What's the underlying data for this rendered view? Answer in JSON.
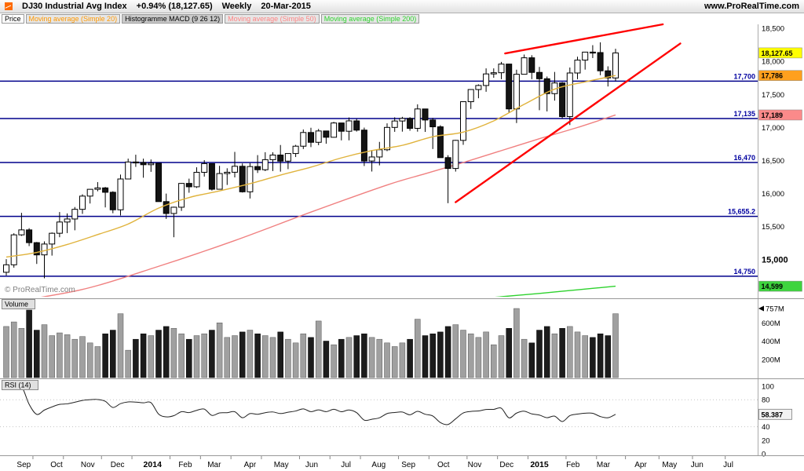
{
  "header": {
    "symbol": "DJ30 Industrial Avg Index",
    "change": "+0.94% (18,127.65)",
    "timeframe": "Weekly",
    "date": "20-Mar-2015",
    "website": "www.ProRealTime.com",
    "logo_color": "#ff6a00"
  },
  "indicators": [
    {
      "label": "Price",
      "color": "#000000",
      "bg": "#ffffff"
    },
    {
      "label": "Moving average (Simple 20)",
      "color": "#ff9800",
      "bg": "#e6e6e6"
    },
    {
      "label": "Histogramme MACD (9 26 12)",
      "color": "#000000",
      "bg": "#c9c9c9"
    },
    {
      "label": "Moving average (Simple 50)",
      "color": "#ff8585",
      "bg": "#e6e6e6"
    },
    {
      "label": "Moving average (Simple 200)",
      "color": "#2dd22d",
      "bg": "#e6e6e6"
    }
  ],
  "copyright": "© ProRealTime.com",
  "chart_data": {
    "type": "candlestick",
    "title": "DJ30 Industrial Avg Index — Weekly — 20-Mar-2015",
    "last_close": 18127.65,
    "change_pct": "+0.94%",
    "price_range": [
      14440,
      18560
    ],
    "price_ticks": [
      {
        "v": 18500,
        "label": "18,500"
      },
      {
        "v": 18000,
        "label": "18,000"
      },
      {
        "v": 17500,
        "label": "17,500"
      },
      {
        "v": 17000,
        "label": "17,000"
      },
      {
        "v": 16500,
        "label": "16,500"
      },
      {
        "v": 16000,
        "label": "16,000"
      },
      {
        "v": 15500,
        "label": "15,500"
      },
      {
        "v": 15000,
        "label": "15,000",
        "bold": true
      }
    ],
    "horizontal_lines": [
      {
        "price": 17700,
        "label": "17,700"
      },
      {
        "price": 17135,
        "label": "17,135"
      },
      {
        "price": 16470,
        "label": "16,470"
      },
      {
        "price": 15655.2,
        "label": "15,655.2"
      },
      {
        "price": 14750,
        "label": "14,750"
      }
    ],
    "badges": [
      {
        "name": "last-price-badge",
        "value": "18,127.65",
        "price": 18127.65,
        "bg": "#ffff00",
        "fg": "#000000"
      },
      {
        "name": "ma20-badge",
        "value": "17,786",
        "price": 17786,
        "bg": "#ffa01e",
        "fg": "#000000"
      },
      {
        "name": "ma50-badge",
        "value": "17,189",
        "price": 17189,
        "bg": "#fb8a8a",
        "fg": "#000000"
      },
      {
        "name": "ma200-badge",
        "value": "14,599",
        "price": 14599,
        "bg": "#3ed43e",
        "fg": "#000000"
      }
    ],
    "ma_colors": {
      "ma20": "#e0b33c",
      "ma50": "#f08080",
      "ma200": "#2dd22d"
    },
    "ma20_points": [
      [
        0,
        15040
      ],
      [
        4,
        15110
      ],
      [
        8,
        15230
      ],
      [
        12,
        15380
      ],
      [
        16,
        15540
      ],
      [
        20,
        15780
      ],
      [
        24,
        15940
      ],
      [
        28,
        16040
      ],
      [
        32,
        16150
      ],
      [
        36,
        16280
      ],
      [
        40,
        16400
      ],
      [
        44,
        16540
      ],
      [
        48,
        16650
      ],
      [
        52,
        16730
      ],
      [
        56,
        16860
      ],
      [
        60,
        16930
      ],
      [
        64,
        17100
      ],
      [
        68,
        17350
      ],
      [
        72,
        17580
      ],
      [
        76,
        17690
      ],
      [
        80,
        17786
      ]
    ],
    "ma50_points": [
      [
        0,
        14350
      ],
      [
        10,
        14550
      ],
      [
        20,
        14900
      ],
      [
        30,
        15290
      ],
      [
        40,
        15720
      ],
      [
        50,
        16130
      ],
      [
        55,
        16300
      ],
      [
        60,
        16470
      ],
      [
        65,
        16650
      ],
      [
        70,
        16830
      ],
      [
        75,
        17000
      ],
      [
        80,
        17189
      ]
    ],
    "ma200_points": [
      [
        55,
        14340
      ],
      [
        60,
        14390
      ],
      [
        65,
        14440
      ],
      [
        70,
        14490
      ],
      [
        75,
        14545
      ],
      [
        80,
        14599
      ]
    ],
    "trend_lines": [
      {
        "from": [
          59,
          15870
        ],
        "to": [
          88.5,
          18270
        ],
        "color": "#ff0000"
      },
      {
        "from": [
          65.5,
          18120
        ],
        "to": [
          86.2,
          18560
        ],
        "color": "#ff0000"
      }
    ],
    "weeks": [
      [
        14810,
        15009,
        14760,
        14923,
        560
      ],
      [
        14923,
        15400,
        14880,
        15376,
        610
      ],
      [
        15376,
        15709,
        15360,
        15451,
        540
      ],
      [
        15451,
        15477,
        15206,
        15258,
        740
      ],
      [
        15258,
        15268,
        14936,
        15073,
        520
      ],
      [
        15073,
        15277,
        14719,
        15237,
        580
      ],
      [
        15237,
        15412,
        15062,
        15400,
        460
      ],
      [
        15400,
        15721,
        15340,
        15570,
        490
      ],
      [
        15570,
        15700,
        15403,
        15616,
        470
      ],
      [
        15616,
        15797,
        15445,
        15762,
        420
      ],
      [
        15762,
        15989,
        15693,
        15962,
        450
      ],
      [
        15962,
        16068,
        15850,
        16065,
        380
      ],
      [
        16065,
        16174,
        16035,
        16086,
        340
      ],
      [
        16086,
        16100,
        15791,
        16020,
        480
      ],
      [
        16020,
        16035,
        15703,
        15755,
        520
      ],
      [
        15755,
        16288,
        15669,
        16221,
        700
      ],
      [
        16221,
        16529,
        16221,
        16478,
        300
      ],
      [
        16478,
        16588,
        16404,
        16470,
        420
      ],
      [
        16470,
        16529,
        16240,
        16437,
        480
      ],
      [
        16437,
        16516,
        16329,
        16459,
        460
      ],
      [
        16459,
        16465,
        15879,
        15879,
        520
      ],
      [
        15879,
        16000,
        15617,
        15699,
        560
      ],
      [
        15699,
        15802,
        15340,
        15794,
        540
      ],
      [
        15794,
        16159,
        15738,
        16154,
        480
      ],
      [
        16154,
        16226,
        16013,
        16103,
        420
      ],
      [
        16103,
        16398,
        16086,
        16322,
        460
      ],
      [
        16322,
        16506,
        16257,
        16453,
        480
      ],
      [
        16453,
        16457,
        16046,
        16066,
        520
      ],
      [
        16066,
        16420,
        16066,
        16303,
        600
      ],
      [
        16303,
        16383,
        16131,
        16323,
        440
      ],
      [
        16323,
        16631,
        16245,
        16413,
        460
      ],
      [
        16413,
        16456,
        16016,
        16027,
        500
      ],
      [
        16027,
        16461,
        15926,
        16409,
        520
      ],
      [
        16409,
        16582,
        16312,
        16361,
        480
      ],
      [
        16361,
        16626,
        16340,
        16513,
        460
      ],
      [
        16513,
        16625,
        16341,
        16583,
        440
      ],
      [
        16583,
        16735,
        16332,
        16491,
        500
      ],
      [
        16491,
        16607,
        16370,
        16606,
        420
      ],
      [
        16606,
        16737,
        16553,
        16717,
        380
      ],
      [
        16717,
        16970,
        16674,
        16924,
        480
      ],
      [
        16924,
        16996,
        16703,
        16776,
        440
      ],
      [
        16776,
        16978,
        16732,
        16947,
        620
      ],
      [
        16947,
        16951,
        16754,
        16852,
        400
      ],
      [
        16852,
        17085,
        16846,
        17068,
        360
      ],
      [
        17068,
        17069,
        16805,
        16943,
        420
      ],
      [
        16943,
        17151,
        16806,
        17100,
        440
      ],
      [
        17100,
        17131,
        16938,
        16960,
        460
      ],
      [
        16960,
        16998,
        16417,
        16493,
        480
      ],
      [
        16493,
        16660,
        16334,
        16554,
        440
      ],
      [
        16554,
        16782,
        16427,
        16663,
        420
      ],
      [
        16663,
        17062,
        16643,
        17001,
        380
      ],
      [
        17001,
        17154,
        16934,
        17098,
        340
      ],
      [
        17098,
        17161,
        16937,
        17137,
        380
      ],
      [
        17137,
        17156,
        16951,
        16987,
        420
      ],
      [
        16987,
        17350,
        16937,
        17280,
        640
      ],
      [
        17280,
        17282,
        16934,
        17113,
        460
      ],
      [
        17113,
        17145,
        16674,
        17010,
        480
      ],
      [
        17010,
        17034,
        16544,
        16544,
        500
      ],
      [
        16544,
        16581,
        15855,
        16380,
        560
      ],
      [
        16380,
        16812,
        16333,
        16805,
        580
      ],
      [
        16805,
        17395,
        16738,
        17390,
        520
      ],
      [
        17390,
        17580,
        17280,
        17574,
        480
      ],
      [
        17574,
        17652,
        17442,
        17635,
        440
      ],
      [
        17635,
        17894,
        17540,
        17810,
        500
      ],
      [
        17810,
        17894,
        17752,
        17828,
        360
      ],
      [
        17828,
        17991,
        17731,
        17959,
        460
      ],
      [
        17959,
        17965,
        17219,
        17281,
        540
      ],
      [
        17281,
        17874,
        17067,
        17805,
        757
      ],
      [
        17805,
        18103,
        17805,
        18054,
        420
      ],
      [
        18054,
        18093,
        17731,
        17833,
        380
      ],
      [
        17833,
        17916,
        17262,
        17737,
        520
      ],
      [
        17737,
        17771,
        17243,
        17512,
        560
      ],
      [
        17512,
        17840,
        17406,
        17673,
        480
      ],
      [
        17673,
        17686,
        17136,
        17165,
        540
      ],
      [
        17165,
        17907,
        17037,
        17824,
        560
      ],
      [
        17824,
        18070,
        17730,
        18019,
        500
      ],
      [
        18019,
        18144,
        17875,
        18140,
        460
      ],
      [
        18140,
        18245,
        18050,
        18133,
        440
      ],
      [
        18133,
        18288,
        17790,
        17857,
        480
      ],
      [
        17857,
        17925,
        17620,
        17749,
        460
      ],
      [
        17749,
        18190,
        17700,
        18127.65,
        700
      ]
    ],
    "volume": {
      "label": "Volume",
      "ticks": [
        {
          "v": 757,
          "label": "757M",
          "marker": true
        },
        {
          "v": 600,
          "label": "600M"
        },
        {
          "v": 400,
          "label": "400M"
        },
        {
          "v": 200,
          "label": "200M"
        }
      ]
    },
    "rsi": {
      "label": "RSI (14)",
      "period": 14,
      "current": 58.387,
      "current_label": "58.387",
      "ticks": [
        {
          "v": 100,
          "label": "100"
        },
        {
          "v": 80,
          "label": "80"
        },
        {
          "v": 40,
          "label": "40"
        },
        {
          "v": 20,
          "label": "20"
        },
        {
          "v": 0,
          "label": "0"
        }
      ],
      "dotted": [
        80,
        40
      ]
    },
    "months": [
      {
        "label": "Sep",
        "i": 2.3
      },
      {
        "label": "Oct",
        "i": 6.6
      },
      {
        "label": "Nov",
        "i": 10.7
      },
      {
        "label": "Dec",
        "i": 14.6
      },
      {
        "label": "2014",
        "i": 19.2,
        "bold": true
      },
      {
        "label": "Feb",
        "i": 23.5
      },
      {
        "label": "Mar",
        "i": 27.3
      },
      {
        "label": "Apr",
        "i": 32
      },
      {
        "label": "May",
        "i": 36.1
      },
      {
        "label": "Jun",
        "i": 40.1
      },
      {
        "label": "Jul",
        "i": 44.6
      },
      {
        "label": "Aug",
        "i": 48.9
      },
      {
        "label": "Sep",
        "i": 52.8
      },
      {
        "label": "Oct",
        "i": 57.4
      },
      {
        "label": "Nov",
        "i": 61.5
      },
      {
        "label": "Dec",
        "i": 65.7
      },
      {
        "label": "2015",
        "i": 70,
        "bold": true
      },
      {
        "label": "Feb",
        "i": 74.4
      },
      {
        "label": "Mar",
        "i": 78.4
      },
      {
        "label": "Apr",
        "i": 83.3
      },
      {
        "label": "May",
        "i": 87.1
      },
      {
        "label": "Jun",
        "i": 90.7
      },
      {
        "label": "Jul",
        "i": 94.8
      }
    ],
    "month_ticks": [
      3.5,
      7.5,
      12.5,
      16.5,
      21.5,
      25.5,
      29.5,
      33.5,
      38.5,
      42.5,
      46.5,
      51.5,
      55.5,
      60.5,
      64.5,
      68.5,
      73.5,
      77.5,
      81.3,
      85.7,
      90.1,
      94.4
    ]
  }
}
